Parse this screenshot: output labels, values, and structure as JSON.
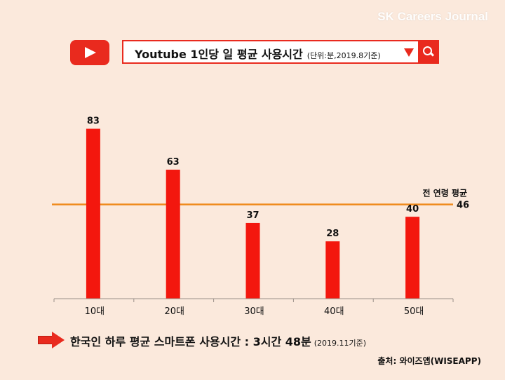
{
  "watermark": "SK Careers Journal",
  "header": {
    "title": "Youtube 1인당 일 평균 사용시간",
    "unit": "(단위:분,2019.8기준)",
    "colors": {
      "accent": "#e92a1e"
    },
    "icons": [
      "youtube-play-icon",
      "dropdown-triangle-icon",
      "search-icon"
    ]
  },
  "chart_data": {
    "type": "bar",
    "categories": [
      "10대",
      "20대",
      "30대",
      "40대",
      "50대"
    ],
    "values": [
      83,
      63,
      37,
      28,
      40
    ],
    "title": "Youtube 1인당 일 평균 사용시간",
    "xlabel": "",
    "ylabel": "",
    "ylim": [
      0,
      100
    ],
    "reference_line": {
      "label": "전 연령 평균",
      "value": 46
    },
    "colors": {
      "bar": "#f3170e",
      "reference_line": "#ef8a1b",
      "axis": "#9a8f88"
    }
  },
  "footnote": {
    "text": "한국인 하루 평균 스마트폰 사용시간 : 3시간 48분",
    "small": "(2019.11기준)"
  },
  "source": "출처: 와이즈앱(WISEAPP)"
}
